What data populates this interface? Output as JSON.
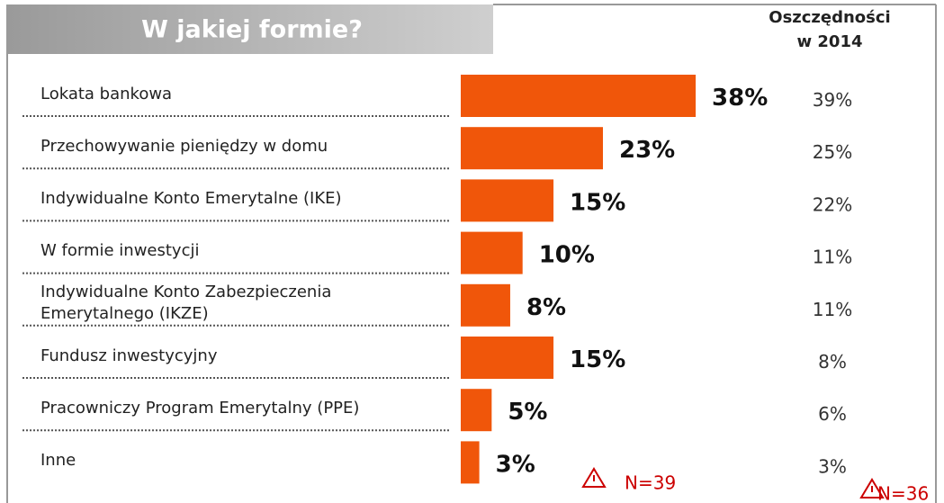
{
  "chart_data": {
    "type": "bar",
    "orientation": "horizontal",
    "title": "W jakiej formie?",
    "categories": [
      "Lokata bankowa",
      "Przechowywanie pieniędzy w domu",
      "Indywidualne Konto Emerytalne (IKE)",
      "W formie inwestycji",
      "Indywidualne Konto Zabezpieczenia Emerytalnego (IKZE)",
      "Fundusz inwestycyjny",
      "Pracowniczy Program Emerytalny (PPE)",
      "Inne"
    ],
    "values": [
      38,
      23,
      15,
      10,
      8,
      15,
      5,
      3
    ],
    "value_labels": [
      "38%",
      "23%",
      "15%",
      "10%",
      "8%",
      "15%",
      "5%",
      "3%"
    ],
    "color": "#f0560a",
    "comparison": {
      "title": [
        "Oszczędności",
        "w 2014"
      ],
      "values": [
        39,
        25,
        22,
        11,
        11,
        8,
        6,
        3
      ],
      "value_labels": [
        "39%",
        "25%",
        "22%",
        "11%",
        "11%",
        "8%",
        "6%",
        "3%"
      ]
    },
    "notes": [
      "N=39",
      "N=36"
    ]
  }
}
